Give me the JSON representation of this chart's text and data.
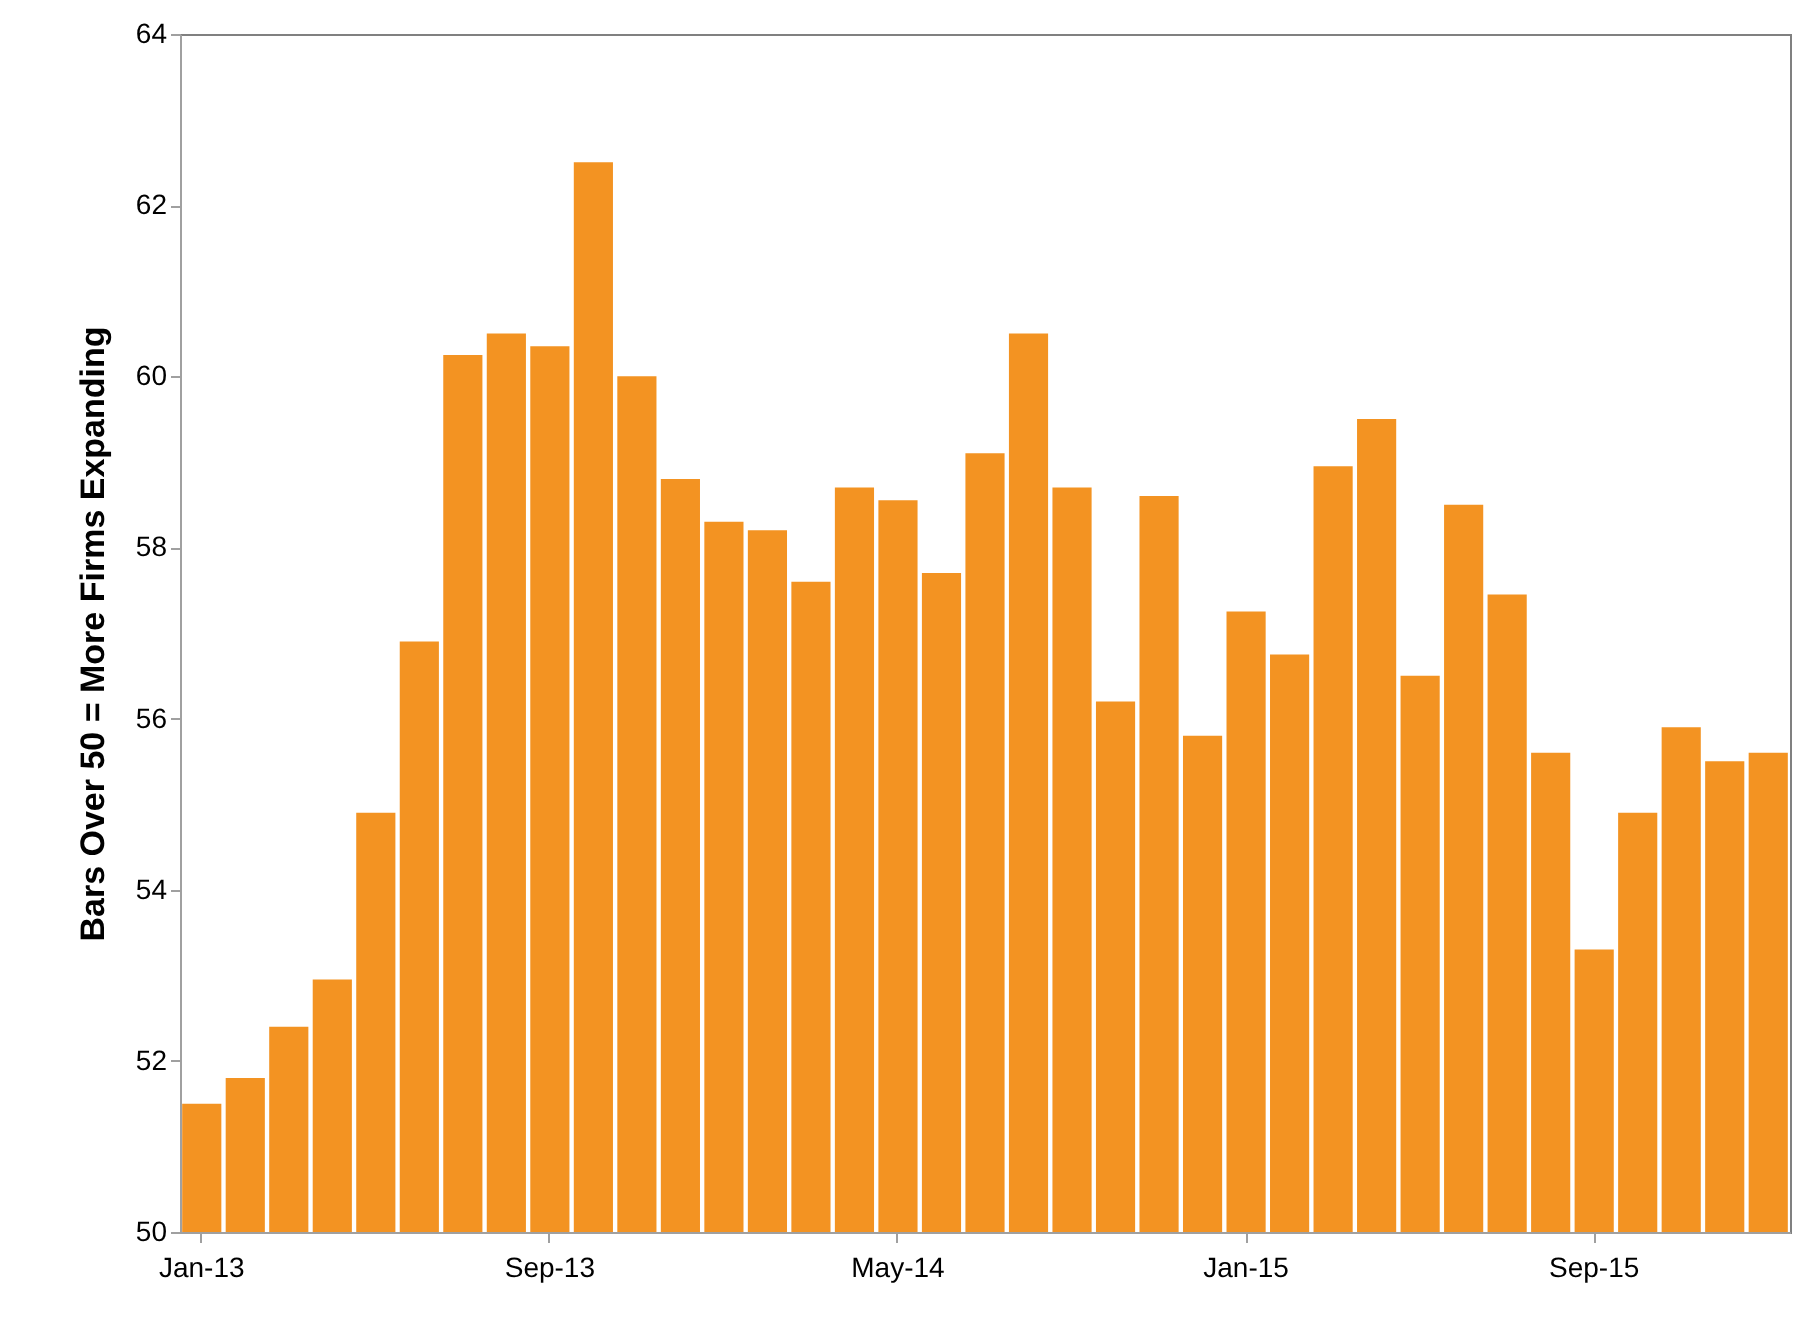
{
  "chart_data": {
    "type": "bar",
    "ylabel": "Bars Over 50 = More Firms Expanding",
    "categories": [
      "Jan-13",
      null,
      null,
      null,
      null,
      null,
      null,
      null,
      "Sep-13",
      null,
      null,
      null,
      null,
      null,
      null,
      null,
      "May-14",
      null,
      null,
      null,
      null,
      null,
      null,
      null,
      "Jan-15",
      null,
      null,
      null,
      null,
      null,
      null,
      null,
      "Sep-15",
      null,
      null,
      null,
      null
    ],
    "values": [
      51.5,
      51.8,
      52.4,
      52.95,
      54.9,
      56.9,
      60.25,
      60.5,
      60.35,
      62.5,
      60.0,
      58.8,
      58.3,
      58.2,
      57.6,
      58.7,
      58.55,
      57.7,
      59.1,
      60.5,
      58.7,
      56.2,
      58.6,
      55.8,
      57.25,
      56.75,
      58.95,
      59.5,
      56.5,
      58.5,
      57.45,
      55.6,
      53.3,
      54.9,
      55.9,
      55.5,
      55.6
    ],
    "color": "#f39322",
    "ylim": [
      50,
      64
    ],
    "yticks": [
      50,
      52,
      54,
      56,
      58,
      60,
      62,
      64
    ],
    "grid": false
  }
}
